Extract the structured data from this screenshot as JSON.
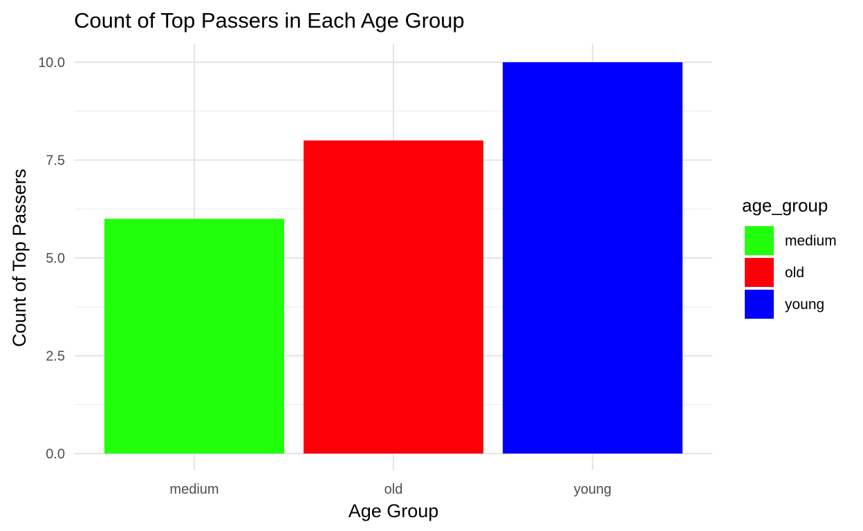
{
  "chart_data": {
    "type": "bar",
    "title": "Count of Top Passers in Each Age Group",
    "xlabel": "Age Group",
    "ylabel": "Count of Top Passers",
    "categories": [
      "medium",
      "old",
      "young"
    ],
    "values": [
      6,
      8,
      10
    ],
    "colors": [
      "#22ff0d",
      "#fd0007",
      "#0000fd"
    ],
    "ylim": [
      0,
      10
    ],
    "y_ticks": [
      0.0,
      2.5,
      5.0,
      7.5,
      10.0
    ],
    "y_tick_labels": [
      "0.0",
      "2.5",
      "5.0",
      "7.5",
      "10.0"
    ],
    "grid": true,
    "legend": {
      "title": "age_group",
      "entries": [
        "medium",
        "old",
        "young"
      ],
      "placement": "right"
    }
  }
}
